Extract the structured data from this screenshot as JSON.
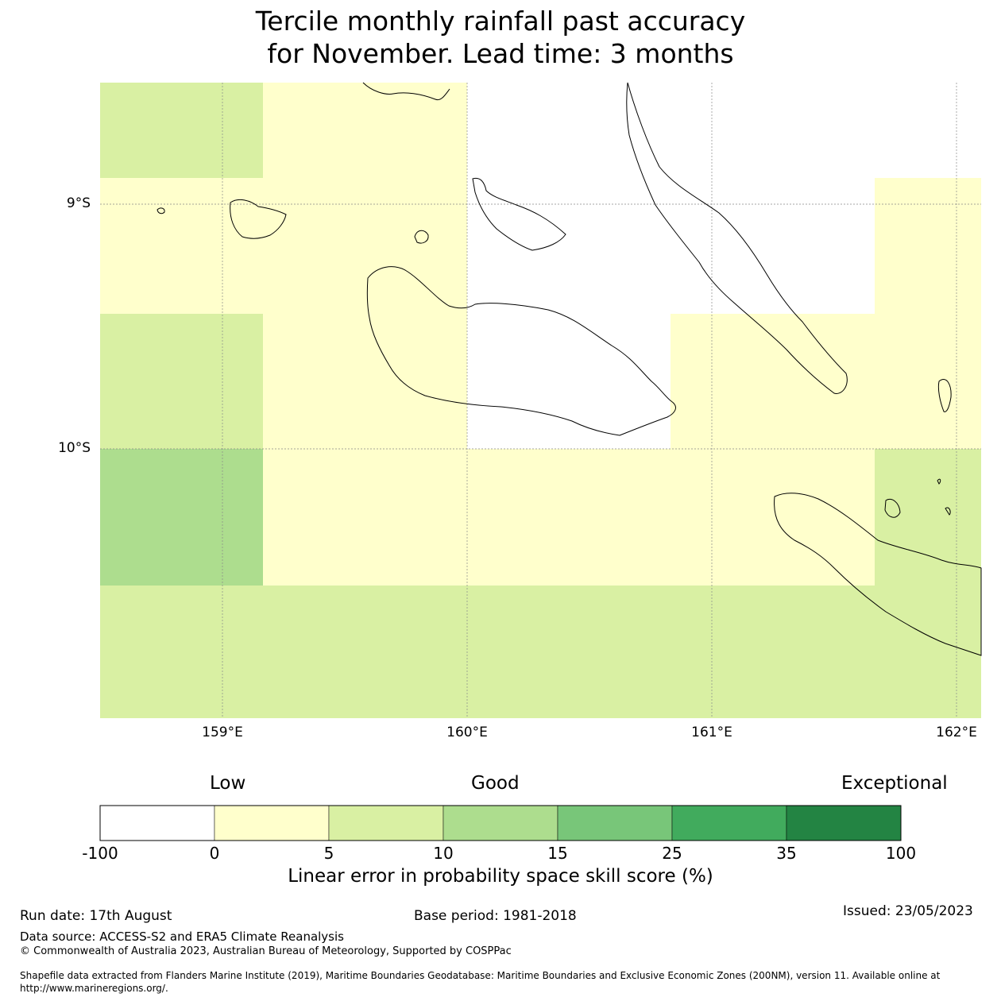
{
  "title": {
    "line1": "Tercile monthly rainfall past accuracy",
    "line2": "for November. Lead time: 3 months"
  },
  "map": {
    "lat_labels": [
      "9°S",
      "10°S"
    ],
    "lon_labels": [
      "159°E",
      "160°E",
      "161°E",
      "162°E"
    ],
    "colors": {
      "white": "#ffffff",
      "yellow": "#ffffcc",
      "light_green": "#d9f0a3",
      "green": "#addd8e"
    }
  },
  "colorbar": {
    "categories": [
      "Low",
      "Good",
      "Exceptional"
    ],
    "ticks": [
      "-100",
      "0",
      "5",
      "10",
      "15",
      "25",
      "35",
      "100"
    ],
    "colors": [
      "#ffffff",
      "#ffffcc",
      "#d9f0a3",
      "#addd8e",
      "#78c679",
      "#41ab5d",
      "#238443"
    ],
    "title": "Linear error in probability space skill score (%)"
  },
  "footer": {
    "run_date": "Run date: 17th August",
    "base_period": "Base period: 1981-2018",
    "issued": "Issued: 23/05/2023",
    "data_source": "Data source: ACCESS-S2 and ERA5 Climate Reanalysis",
    "copyright": "© Commonwealth of Australia 2023, Australian Bureau of Meteorology, Supported by COSPPac",
    "shapefile": "Shapefile data extracted from Flanders Marine Institute (2019), Maritime Boundaries Geodatabase: Maritime Boundaries and Exclusive Economic Zones (200NM), version 11. Available online at http://www.marineregions.org/."
  }
}
